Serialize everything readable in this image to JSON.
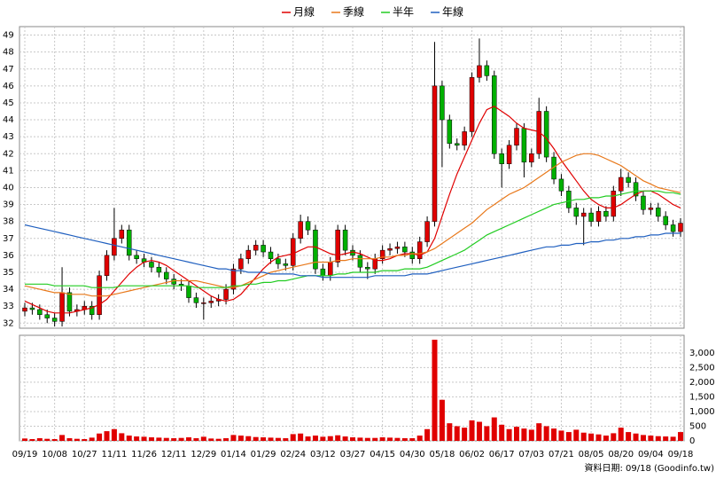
{
  "chart_data": {
    "type": "candlestick",
    "legend": [
      "月線",
      "季線",
      "半年",
      "年線"
    ],
    "footer": "資料日期: 09/18 (Goodinfo.tw)",
    "categories": [
      "09/19",
      null,
      null,
      null,
      "10/08",
      null,
      null,
      null,
      "10/27",
      null,
      null,
      null,
      "11/11",
      null,
      null,
      null,
      "11/26",
      null,
      null,
      null,
      "12/11",
      null,
      null,
      null,
      "12/29",
      null,
      null,
      null,
      "01/14",
      null,
      null,
      null,
      "01/29",
      null,
      null,
      null,
      "02/24",
      null,
      null,
      null,
      "03/12",
      null,
      null,
      null,
      "03/27",
      null,
      null,
      null,
      "04/15",
      null,
      null,
      null,
      "04/30",
      null,
      null,
      null,
      "05/18",
      null,
      null,
      null,
      "06/02",
      null,
      null,
      null,
      "06/17",
      null,
      null,
      null,
      "07/03",
      null,
      null,
      null,
      "07/21",
      null,
      null,
      null,
      "08/05",
      null,
      null,
      null,
      "08/20",
      null,
      null,
      null,
      "09/04",
      null,
      null,
      null,
      "09/18"
    ],
    "up_color": "#e00000",
    "down_color": "#00b000",
    "open": [
      32.7,
      32.9,
      32.8,
      32.5,
      32.3,
      32.1,
      33.8,
      32.7,
      32.8,
      33,
      32.5,
      34.8,
      36,
      37,
      37.5,
      36,
      35.8,
      35.6,
      35.3,
      35,
      34.6,
      34.3,
      34.2,
      33.5,
      33.2,
      33.2,
      33.3,
      33.4,
      34,
      35.2,
      35.8,
      36.3,
      36.6,
      36.2,
      35.8,
      35.5,
      35.4,
      37,
      38,
      37.5,
      35.2,
      34.8,
      35.6,
      37.5,
      36.3,
      36,
      35.3,
      35.2,
      35.8,
      36.3,
      36.4,
      36.5,
      36.2,
      35.8,
      36.8,
      38,
      46,
      44,
      42.6,
      42.5,
      43.3,
      46.5,
      47.2,
      46.6,
      42,
      41.4,
      42.5,
      43.5,
      41.5,
      42,
      44.5,
      41.8,
      40.5,
      39.8,
      38.8,
      38.3,
      38.5,
      38,
      38.6,
      38.3,
      39.8,
      40.6,
      40.3,
      39.5,
      38.7,
      38.8,
      38.3,
      37.8,
      37.4
    ],
    "high": [
      33.2,
      33.2,
      33.1,
      32.8,
      32.6,
      35.3,
      34.1,
      33.1,
      33.3,
      33.3,
      35.1,
      36.3,
      38.8,
      37.8,
      37.8,
      36.3,
      36.1,
      35.9,
      35.6,
      35.3,
      34.9,
      34.6,
      34.5,
      33.8,
      33.5,
      33.6,
      33.7,
      34.3,
      35.5,
      36.1,
      36.6,
      36.9,
      36.9,
      36.5,
      36.1,
      35.8,
      37.3,
      38.4,
      38.3,
      37.8,
      35.5,
      35.9,
      37.8,
      37.8,
      36.6,
      36.3,
      35.6,
      36.1,
      36.6,
      36.7,
      36.8,
      36.8,
      36.5,
      37.1,
      38.3,
      48.6,
      46.3,
      44.3,
      42.9,
      43.6,
      46.8,
      48.8,
      47.5,
      46.9,
      42.3,
      42.8,
      43.8,
      43.8,
      42.3,
      45.3,
      44.8,
      42.1,
      40.8,
      40.1,
      39.1,
      38.8,
      38.8,
      38.9,
      38.9,
      40.1,
      41.1,
      40.9,
      40.6,
      39.8,
      39.1,
      39.1,
      38.6,
      38.1,
      38.2
    ],
    "low": [
      32.4,
      32.5,
      32.2,
      32.0,
      31.8,
      31.8,
      32.4,
      32.4,
      32.5,
      32.2,
      32.2,
      34.5,
      35.7,
      36.7,
      35.7,
      35.5,
      35.3,
      35.0,
      34.7,
      34.3,
      34.0,
      33.9,
      33.2,
      32.9,
      32.2,
      32.9,
      33.0,
      33.1,
      33.7,
      34.9,
      35.5,
      36.0,
      35.9,
      35.5,
      35.2,
      35.1,
      35.1,
      36.7,
      37.2,
      34.9,
      34.5,
      34.5,
      35.3,
      36.0,
      35.7,
      35.0,
      34.6,
      34.9,
      35.5,
      36.0,
      36.1,
      35.9,
      35.5,
      35.5,
      36.5,
      37.7,
      41.2,
      42.3,
      42.2,
      42.2,
      43.0,
      46.2,
      46.3,
      41.7,
      40.0,
      41.1,
      42.2,
      40.6,
      41.2,
      41.7,
      41.5,
      40.2,
      39.5,
      38.5,
      37.8,
      36.6,
      37.7,
      37.7,
      38.0,
      38.0,
      39.5,
      40.0,
      39.2,
      38.4,
      38.4,
      38.0,
      37.5,
      37.1,
      37.1
    ],
    "close": [
      32.9,
      32.8,
      32.5,
      32.3,
      32.1,
      33.8,
      32.7,
      32.8,
      33,
      32.5,
      34.8,
      36,
      37,
      37.5,
      36,
      35.8,
      35.6,
      35.3,
      35,
      34.6,
      34.3,
      34.2,
      33.5,
      33.2,
      33.2,
      33.3,
      33.4,
      34,
      35.2,
      35.8,
      36.3,
      36.6,
      36.2,
      35.8,
      35.5,
      35.4,
      37,
      38,
      37.5,
      35.2,
      34.8,
      35.6,
      37.5,
      36.3,
      36,
      35.3,
      35.2,
      35.8,
      36.3,
      36.4,
      36.5,
      36.2,
      35.8,
      36.8,
      38,
      46,
      44,
      42.6,
      42.5,
      43.3,
      46.5,
      47.2,
      46.6,
      42,
      41.4,
      42.5,
      43.5,
      41.5,
      42,
      44.5,
      41.8,
      40.5,
      39.8,
      38.8,
      38.3,
      38.5,
      38,
      38.6,
      38.3,
      39.8,
      40.6,
      40.3,
      39.5,
      38.7,
      38.8,
      38.3,
      37.8,
      37.4,
      37.9
    ],
    "series": [
      {
        "name": "月線",
        "color": "#e00000",
        "values": [
          33.3,
          33.1,
          32.9,
          32.7,
          32.6,
          32.6,
          32.6,
          32.7,
          32.8,
          32.9,
          33.1,
          33.4,
          33.9,
          34.4,
          34.9,
          35.3,
          35.6,
          35.7,
          35.6,
          35.4,
          35.1,
          34.8,
          34.5,
          34.2,
          33.9,
          33.6,
          33.4,
          33.3,
          33.4,
          33.7,
          34.2,
          34.7,
          35.2,
          35.6,
          35.9,
          36.0,
          36.1,
          36.3,
          36.5,
          36.5,
          36.3,
          36.1,
          36.0,
          36.1,
          36.2,
          36.1,
          35.9,
          35.7,
          35.7,
          35.8,
          36.0,
          36.1,
          36.1,
          36.0,
          36.2,
          37.0,
          38.3,
          39.6,
          40.8,
          41.8,
          42.8,
          43.8,
          44.6,
          44.8,
          44.5,
          44.2,
          43.8,
          43.5,
          43.4,
          43.3,
          42.9,
          42.3,
          41.6,
          41.0,
          40.4,
          39.8,
          39.3,
          39.0,
          38.8,
          38.8,
          39.0,
          39.3,
          39.6,
          39.8,
          39.8,
          39.6,
          39.3,
          39.0,
          38.8
        ]
      },
      {
        "name": "季線",
        "color": "#e8781a",
        "values": [
          34.2,
          34.1,
          34.0,
          33.9,
          33.8,
          33.8,
          33.7,
          33.7,
          33.7,
          33.6,
          33.6,
          33.6,
          33.7,
          33.8,
          33.9,
          34.0,
          34.1,
          34.2,
          34.3,
          34.4,
          34.5,
          34.5,
          34.5,
          34.5,
          34.4,
          34.3,
          34.2,
          34.1,
          34.1,
          34.2,
          34.4,
          34.6,
          34.8,
          35.0,
          35.1,
          35.2,
          35.3,
          35.4,
          35.5,
          35.6,
          35.6,
          35.6,
          35.7,
          35.7,
          35.8,
          35.8,
          35.8,
          35.8,
          35.9,
          35.9,
          36.0,
          36.0,
          36.1,
          36.1,
          36.2,
          36.4,
          36.7,
          37.0,
          37.3,
          37.6,
          37.9,
          38.3,
          38.7,
          39.0,
          39.3,
          39.6,
          39.8,
          40.0,
          40.3,
          40.6,
          40.9,
          41.2,
          41.5,
          41.7,
          41.9,
          42.0,
          42.0,
          41.9,
          41.7,
          41.5,
          41.3,
          41.0,
          40.7,
          40.4,
          40.2,
          40.0,
          39.9,
          39.8,
          39.7
        ]
      },
      {
        "name": "半年",
        "color": "#22cc22",
        "values": [
          34.3,
          34.3,
          34.3,
          34.3,
          34.2,
          34.2,
          34.2,
          34.2,
          34.2,
          34.1,
          34.1,
          34.1,
          34.1,
          34.2,
          34.2,
          34.2,
          34.2,
          34.2,
          34.2,
          34.2,
          34.2,
          34.2,
          34.2,
          34.1,
          34.1,
          34.1,
          34.1,
          34.1,
          34.2,
          34.2,
          34.3,
          34.3,
          34.4,
          34.4,
          34.5,
          34.5,
          34.6,
          34.7,
          34.8,
          34.8,
          34.8,
          34.8,
          34.9,
          34.9,
          35.0,
          35.0,
          35.0,
          35.0,
          35.1,
          35.1,
          35.1,
          35.2,
          35.2,
          35.2,
          35.3,
          35.5,
          35.7,
          35.9,
          36.1,
          36.3,
          36.6,
          36.9,
          37.2,
          37.4,
          37.6,
          37.8,
          38.0,
          38.2,
          38.4,
          38.6,
          38.8,
          39.0,
          39.1,
          39.2,
          39.3,
          39.3,
          39.4,
          39.4,
          39.5,
          39.5,
          39.6,
          39.7,
          39.8,
          39.8,
          39.8,
          39.8,
          39.7,
          39.7,
          39.6
        ]
      },
      {
        "name": "年線",
        "color": "#1f5fbf",
        "values": [
          37.8,
          37.7,
          37.6,
          37.5,
          37.4,
          37.3,
          37.2,
          37.1,
          37.0,
          36.9,
          36.8,
          36.7,
          36.6,
          36.5,
          36.4,
          36.3,
          36.2,
          36.1,
          36.0,
          35.9,
          35.8,
          35.7,
          35.6,
          35.5,
          35.4,
          35.3,
          35.2,
          35.2,
          35.1,
          35.1,
          35.0,
          35.0,
          35.0,
          34.9,
          34.9,
          34.9,
          34.9,
          34.8,
          34.8,
          34.8,
          34.7,
          34.7,
          34.7,
          34.7,
          34.7,
          34.7,
          34.7,
          34.8,
          34.8,
          34.8,
          34.8,
          34.8,
          34.9,
          34.9,
          34.9,
          35.0,
          35.1,
          35.2,
          35.3,
          35.4,
          35.5,
          35.6,
          35.7,
          35.8,
          35.9,
          36.0,
          36.1,
          36.2,
          36.3,
          36.4,
          36.5,
          36.5,
          36.6,
          36.6,
          36.7,
          36.7,
          36.8,
          36.8,
          36.9,
          36.9,
          37.0,
          37.0,
          37.1,
          37.1,
          37.2,
          37.2,
          37.3,
          37.3,
          37.3
        ]
      }
    ],
    "ylim": [
      31.7,
      49.5
    ],
    "yticks": [
      32,
      33,
      34,
      35,
      36,
      37,
      38,
      39,
      40,
      41,
      42,
      43,
      44,
      45,
      46,
      47,
      48,
      49
    ],
    "grid": true,
    "volume": {
      "color": "#e00000",
      "ylim": [
        0,
        3600
      ],
      "yticks": [
        0,
        500,
        {
          "value": 1000,
          "label": "1,000"
        },
        {
          "value": 1500,
          "label": "1,500"
        },
        {
          "value": 2000,
          "label": "2,000"
        },
        {
          "value": 2500,
          "label": "2,500"
        },
        {
          "value": 3000,
          "label": "3,000"
        }
      ],
      "values": [
        80,
        60,
        90,
        70,
        60,
        200,
        90,
        70,
        60,
        110,
        250,
        330,
        400,
        260,
        180,
        150,
        140,
        120,
        110,
        100,
        90,
        100,
        120,
        90,
        140,
        80,
        70,
        90,
        200,
        180,
        160,
        130,
        120,
        110,
        100,
        90,
        230,
        250,
        150,
        180,
        140,
        160,
        190,
        150,
        120,
        110,
        100,
        100,
        120,
        110,
        100,
        90,
        90,
        180,
        400,
        3450,
        1400,
        600,
        500,
        450,
        700,
        650,
        500,
        800,
        550,
        400,
        480,
        420,
        380,
        600,
        500,
        420,
        350,
        300,
        380,
        280,
        250,
        220,
        180,
        260,
        450,
        300,
        250,
        200,
        180,
        160,
        150,
        140,
        300
      ]
    }
  }
}
